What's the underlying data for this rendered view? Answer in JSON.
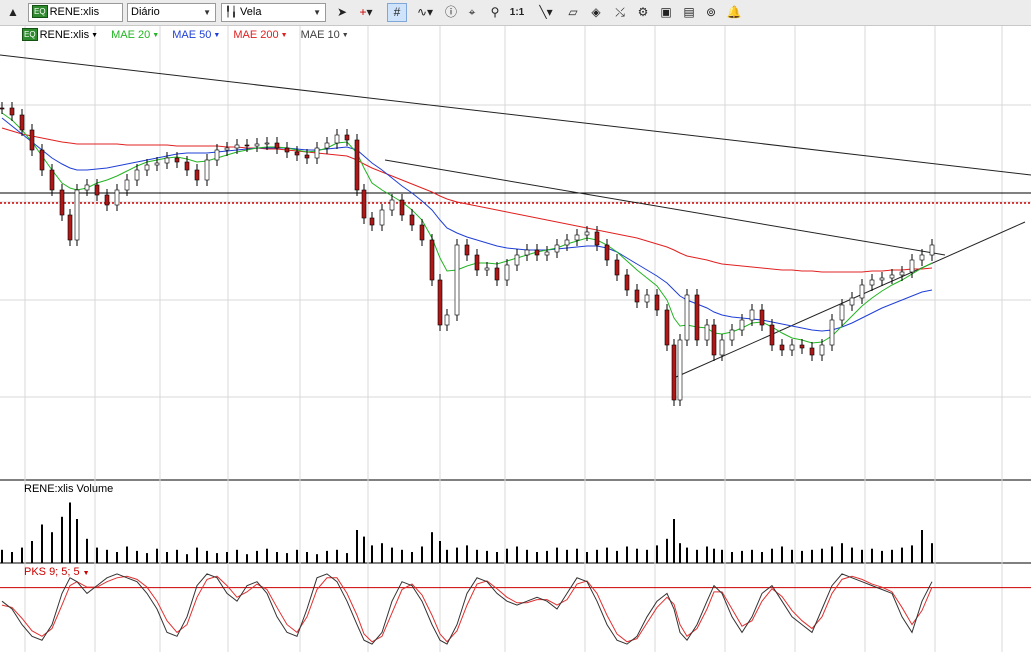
{
  "toolbar": {
    "symbol": "RENE:xlis",
    "symbol_tag": "EQ",
    "period": "Diário",
    "chart_style": "Vela",
    "icons": [
      "collapse-icon",
      "pointer-icon",
      "crosshair-icon",
      "grid-icon",
      "indicator-icon",
      "info-icon",
      "draw-icon",
      "zoom-icon",
      "one-to-one-icon",
      "line-icon",
      "eraser-icon",
      "eraser-all-icon",
      "tools-icon",
      "tools-2-icon",
      "image-icon",
      "clone-icon",
      "alarm-icon"
    ],
    "zoom_label": "1:1"
  },
  "legend": {
    "symbol": "RENE:xlis",
    "symbol_tag": "EQ",
    "items": [
      {
        "label": "MAE 20",
        "color": "#22b422"
      },
      {
        "label": "MAE 50",
        "color": "#1f3fd6"
      },
      {
        "label": "MAE 200",
        "color": "#e02020"
      },
      {
        "label": "MAE 10",
        "color": "#404040"
      }
    ]
  },
  "volume_panel": {
    "label": "RENE:xlis Volume"
  },
  "oscillator_panel": {
    "label": "PKS 9; 5; 5",
    "color": "#cc0000"
  },
  "chart_data": {
    "type": "candlestick",
    "note_series": "price closes read from chart (relative scale, axis not printed)",
    "x": [
      0,
      10,
      20,
      30,
      40,
      50,
      60,
      68,
      75,
      85,
      95,
      105,
      115,
      125,
      135,
      145,
      155,
      165,
      175,
      185,
      195,
      205,
      215,
      225,
      235,
      245,
      255,
      265,
      275,
      285,
      295,
      305,
      315,
      325,
      335,
      345,
      355,
      362,
      370,
      380,
      390,
      400,
      410,
      420,
      430,
      438,
      445,
      455,
      465,
      475,
      485,
      495,
      505,
      515,
      525,
      535,
      545,
      555,
      565,
      575,
      585,
      595,
      605,
      615,
      625,
      635,
      645,
      655,
      665,
      672,
      678,
      685,
      695,
      705,
      712,
      720,
      730,
      740,
      750,
      760,
      770,
      780,
      790,
      800,
      810,
      820,
      830,
      840,
      850,
      860,
      870,
      880,
      890,
      900,
      910,
      920,
      930
    ],
    "close": [
      68,
      75,
      90,
      110,
      130,
      150,
      175,
      200,
      150,
      145,
      155,
      165,
      150,
      140,
      130,
      125,
      123,
      118,
      122,
      130,
      140,
      120,
      110,
      108,
      105,
      106,
      104,
      103,
      108,
      112,
      115,
      118,
      108,
      103,
      95,
      100,
      150,
      178,
      185,
      170,
      160,
      175,
      185,
      200,
      240,
      285,
      275,
      205,
      215,
      230,
      228,
      240,
      225,
      215,
      210,
      215,
      212,
      205,
      200,
      195,
      192,
      205,
      220,
      235,
      250,
      262,
      255,
      270,
      305,
      360,
      300,
      255,
      300,
      285,
      315,
      300,
      290,
      280,
      270,
      285,
      305,
      310,
      305,
      308,
      315,
      305,
      280,
      265,
      258,
      245,
      240,
      238,
      235,
      232,
      220,
      215,
      205
    ],
    "ma20": [
      75,
      82,
      92,
      104,
      118,
      132,
      145,
      150,
      152,
      150,
      145,
      142,
      138,
      133,
      128,
      124,
      122,
      120,
      119,
      121,
      124,
      123,
      120,
      117,
      114,
      112,
      110,
      109,
      109,
      110,
      112,
      114,
      113,
      110,
      105,
      104,
      115,
      130,
      145,
      152,
      158,
      164,
      172,
      182,
      200,
      220,
      233,
      232,
      228,
      225,
      225,
      226,
      223,
      220,
      217,
      214,
      212,
      210,
      206,
      203,
      200,
      202,
      207,
      214,
      223,
      232,
      240,
      248,
      262,
      280,
      288,
      287,
      289,
      290,
      295,
      296,
      294,
      290,
      285,
      284,
      289,
      295,
      300,
      302,
      305,
      304,
      298,
      288,
      278,
      268,
      260,
      253,
      247,
      242,
      236,
      230,
      225
    ],
    "ma50": [
      80,
      88,
      96,
      104,
      112,
      120,
      126,
      130,
      132,
      132,
      131,
      130,
      128,
      126,
      124,
      122,
      120,
      118,
      116,
      115,
      115,
      115,
      114,
      113,
      112,
      111,
      110,
      110,
      110,
      110,
      111,
      112,
      112,
      111,
      110,
      109,
      112,
      118,
      125,
      132,
      140,
      148,
      155,
      163,
      172,
      182,
      190,
      195,
      199,
      202,
      205,
      208,
      210,
      211,
      212,
      212,
      212,
      211,
      210,
      209,
      208,
      208,
      210,
      214,
      220,
      226,
      232,
      238,
      245,
      252,
      258,
      262,
      266,
      270,
      274,
      277,
      279,
      280,
      281,
      282,
      284,
      286,
      288,
      290,
      292,
      293,
      292,
      289,
      285,
      280,
      275,
      270,
      266,
      262,
      258,
      254,
      252
    ],
    "ma200": [
      90,
      93,
      96,
      98,
      100,
      102,
      104,
      105,
      106,
      106,
      106,
      106,
      106,
      107,
      107,
      107,
      107,
      107,
      108,
      108,
      108,
      108,
      108,
      109,
      109,
      110,
      110,
      111,
      111,
      112,
      113,
      114,
      115,
      116,
      117,
      118,
      122,
      126,
      130,
      134,
      138,
      142,
      146,
      150,
      154,
      158,
      161,
      164,
      166,
      168,
      170,
      172,
      174,
      176,
      178,
      180,
      182,
      184,
      186,
      188,
      190,
      192,
      194,
      196,
      198,
      200,
      203,
      206,
      209,
      212,
      215,
      218,
      220,
      222,
      224,
      226,
      227,
      228,
      229,
      230,
      231,
      232,
      232,
      233,
      233,
      234,
      234,
      234,
      234,
      234,
      233,
      233,
      232,
      232,
      231,
      231,
      230
    ],
    "volume": [
      12,
      10,
      14,
      20,
      35,
      28,
      42,
      55,
      40,
      22,
      14,
      12,
      10,
      15,
      11,
      9,
      13,
      10,
      12,
      8,
      14,
      11,
      9,
      10,
      12,
      8,
      11,
      13,
      10,
      9,
      12,
      10,
      8,
      11,
      12,
      9,
      30,
      24,
      16,
      18,
      14,
      12,
      10,
      15,
      28,
      20,
      12,
      14,
      16,
      12,
      11,
      10,
      13,
      15,
      12,
      10,
      11,
      14,
      12,
      13,
      10,
      12,
      14,
      11,
      15,
      13,
      12,
      16,
      22,
      40,
      18,
      14,
      12,
      15,
      13,
      12,
      10,
      11,
      12,
      10,
      13,
      15,
      12,
      11,
      12,
      13,
      15,
      18,
      14,
      12,
      13,
      11,
      12,
      14,
      16,
      30,
      18
    ],
    "pks_k": [
      60,
      50,
      30,
      15,
      10,
      30,
      70,
      90,
      85,
      70,
      80,
      90,
      95,
      90,
      85,
      70,
      50,
      20,
      15,
      40,
      80,
      95,
      90,
      70,
      60,
      80,
      85,
      70,
      40,
      20,
      15,
      50,
      90,
      95,
      85,
      60,
      30,
      10,
      5,
      20,
      60,
      85,
      80,
      60,
      30,
      10,
      5,
      30,
      70,
      90,
      85,
      70,
      60,
      55,
      60,
      65,
      60,
      50,
      70,
      90,
      85,
      60,
      30,
      10,
      5,
      15,
      40,
      60,
      70,
      50,
      20,
      10,
      30,
      60,
      80,
      70,
      40,
      20,
      40,
      70,
      80,
      60,
      40,
      30,
      20,
      50,
      80,
      95,
      90,
      85,
      80,
      75,
      70,
      40,
      20,
      60,
      85
    ],
    "pks_d": [
      55,
      52,
      38,
      22,
      15,
      25,
      55,
      80,
      85,
      78,
      78,
      85,
      90,
      92,
      88,
      78,
      60,
      35,
      20,
      30,
      65,
      88,
      92,
      80,
      65,
      72,
      82,
      75,
      52,
      30,
      20,
      40,
      75,
      90,
      90,
      70,
      42,
      18,
      8,
      15,
      45,
      75,
      82,
      68,
      42,
      18,
      8,
      22,
      55,
      82,
      86,
      76,
      65,
      58,
      58,
      62,
      62,
      55,
      62,
      82,
      86,
      70,
      42,
      18,
      8,
      12,
      32,
      52,
      65,
      56,
      30,
      15,
      25,
      50,
      72,
      72,
      50,
      28,
      35,
      60,
      76,
      66,
      48,
      35,
      25,
      40,
      70,
      88,
      92,
      88,
      82,
      78,
      72,
      52,
      30,
      48,
      78
    ],
    "pks_level": 80,
    "h_line_level": 205,
    "dotted_level": 215
  }
}
